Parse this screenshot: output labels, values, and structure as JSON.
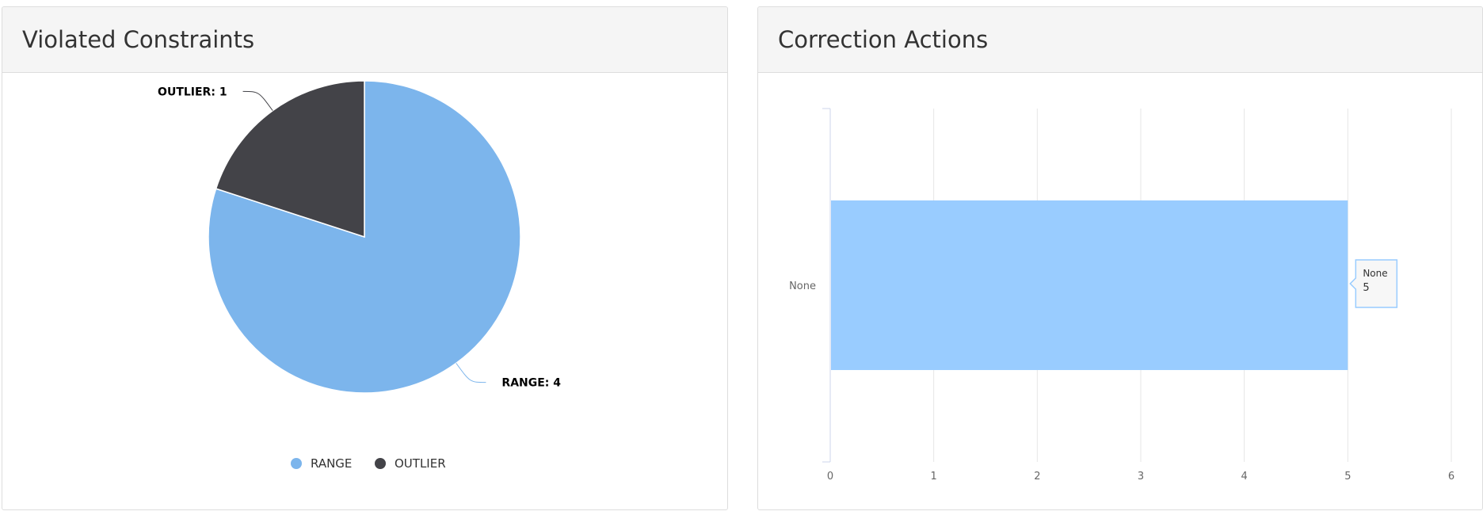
{
  "panels": {
    "left_title": "Violated Constraints",
    "right_title": "Correction Actions"
  },
  "chart_data": [
    {
      "type": "pie",
      "title": "Violated Constraints",
      "slices": [
        {
          "name": "RANGE",
          "value": 4,
          "color": "#7cb5ec",
          "label": "RANGE: 4"
        },
        {
          "name": "OUTLIER",
          "value": 1,
          "color": "#434348",
          "label": "OUTLIER: 1"
        }
      ],
      "legend": {
        "position": "bottom",
        "items": [
          "RANGE",
          "OUTLIER"
        ]
      }
    },
    {
      "type": "bar",
      "orientation": "horizontal",
      "title": "Correction Actions",
      "categories": [
        "None"
      ],
      "values": [
        5
      ],
      "color": "#99ccff",
      "xlim": [
        0,
        6
      ],
      "xticks": [
        "0",
        "1",
        "2",
        "3",
        "4",
        "5",
        "6"
      ],
      "grid": true,
      "tooltip": {
        "category": "None",
        "value": "5"
      }
    }
  ]
}
